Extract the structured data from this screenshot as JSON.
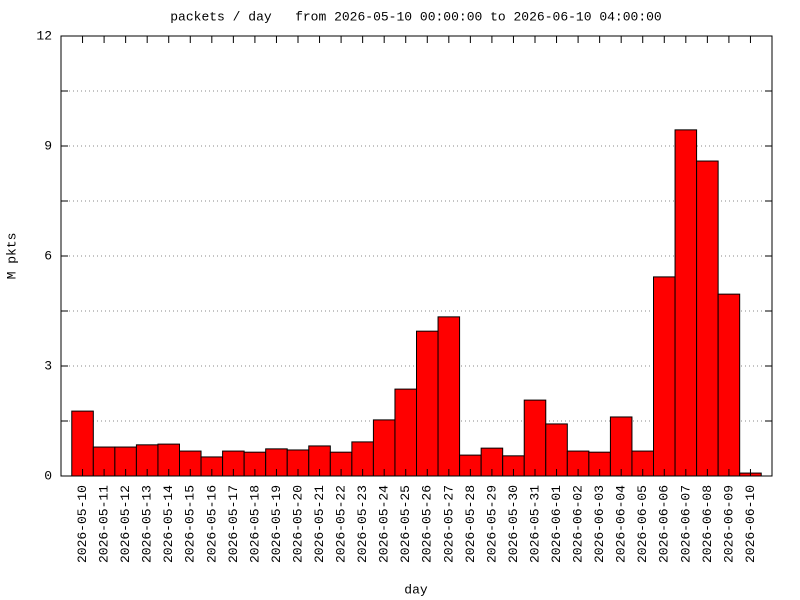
{
  "chart_data": {
    "type": "bar",
    "title": "packets / day   from 2026-05-10 00:00:00 to 2026-06-10 04:00:00",
    "x_label": "day",
    "y_label": "M pkts",
    "categories": [
      "2026-05-10",
      "2026-05-11",
      "2026-05-12",
      "2026-05-13",
      "2026-05-14",
      "2026-05-15",
      "2026-05-16",
      "2026-05-17",
      "2026-05-18",
      "2026-05-19",
      "2026-05-20",
      "2026-05-21",
      "2026-05-22",
      "2026-05-23",
      "2026-05-24",
      "2026-05-25",
      "2026-05-26",
      "2026-05-27",
      "2026-05-28",
      "2026-05-29",
      "2026-05-30",
      "2026-05-31",
      "2026-06-01",
      "2026-06-02",
      "2026-06-03",
      "2026-06-04",
      "2026-06-05",
      "2026-06-06",
      "2026-06-07",
      "2026-06-08",
      "2026-06-09",
      "2026-06-10"
    ],
    "values": [
      1.77,
      0.79,
      0.79,
      0.85,
      0.87,
      0.68,
      0.52,
      0.68,
      0.65,
      0.74,
      0.71,
      0.82,
      0.65,
      0.93,
      1.53,
      2.37,
      3.95,
      4.34,
      0.57,
      0.76,
      0.55,
      2.07,
      1.42,
      0.68,
      0.65,
      1.61,
      0.68,
      5.43,
      9.44,
      8.59,
      4.96,
      0.08
    ],
    "color": "#ff0000",
    "ylim": [
      0,
      12
    ],
    "yticks": [
      0,
      3,
      6,
      9,
      12
    ],
    "yminorticks": [
      1.5,
      4.5,
      7.5,
      10.5
    ],
    "grid": true
  }
}
